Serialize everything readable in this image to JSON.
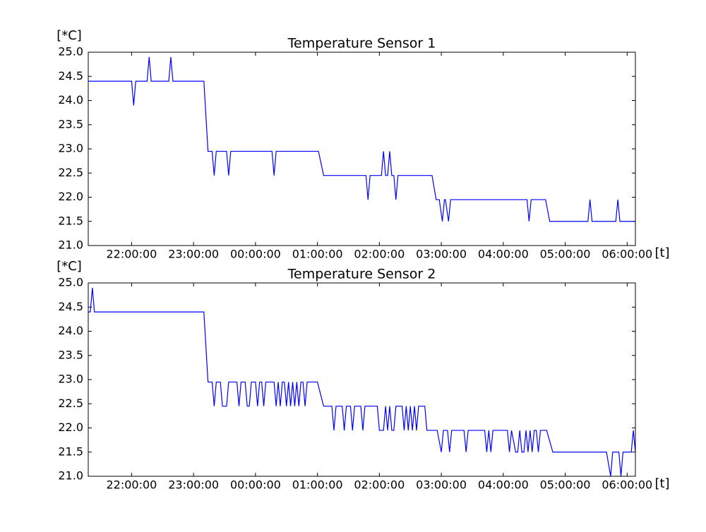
{
  "chart_data": [
    {
      "type": "line",
      "title": "Temperature Sensor 1",
      "ylabel": "[*C]",
      "xlabel": "[t]",
      "color": "#0000ff",
      "xlim": [
        "21:18:00",
        "06:08:00"
      ],
      "xticks": [
        "22:00:00",
        "23:00:00",
        "00:00:00",
        "01:00:00",
        "02:00:00",
        "03:00:00",
        "04:00:00",
        "05:00:00",
        "06:00:00"
      ],
      "ylim": [
        21.0,
        25.0
      ],
      "yticks": [
        {
          "value": 21.0,
          "label": "21.0"
        },
        {
          "value": 21.5,
          "label": "21.5"
        },
        {
          "value": 22.0,
          "label": "22.0"
        },
        {
          "value": 22.5,
          "label": "22.5"
        },
        {
          "value": 23.0,
          "label": "23.0"
        },
        {
          "value": 23.5,
          "label": "23.5"
        },
        {
          "value": 24.0,
          "label": "24.0"
        },
        {
          "value": 24.5,
          "label": "24.5"
        },
        {
          "value": 25.0,
          "label": "25.0"
        }
      ],
      "x": [
        "21:18:00",
        "22:00:00",
        "22:02:00",
        "22:04:00",
        "22:15:00",
        "22:17:00",
        "22:19:00",
        "22:36:00",
        "22:38:00",
        "22:40:00",
        "23:10:00",
        "23:14:00",
        "23:18:00",
        "23:20:00",
        "23:22:00",
        "23:32:00",
        "23:34:00",
        "23:36:00",
        "00:16:00",
        "00:18:00",
        "00:20:00",
        "01:01:00",
        "01:06:00",
        "01:47:00",
        "01:49:00",
        "01:51:00",
        "02:02:00",
        "02:04:00",
        "02:06:00",
        "02:08:00",
        "02:10:00",
        "02:12:00",
        "02:14:00",
        "02:16:00",
        "02:18:00",
        "02:51:00",
        "02:55:00",
        "02:58:00",
        "03:01:00",
        "03:03:00",
        "03:04:00",
        "03:07:00",
        "03:09:00",
        "04:23:00",
        "04:25:00",
        "04:27:00",
        "04:41:00",
        "04:45:00",
        "05:22:00",
        "05:24:00",
        "05:26:00",
        "05:49:00",
        "05:51:00",
        "05:53:00",
        "06:08:00"
      ],
      "values": [
        24.4,
        24.4,
        23.9,
        24.4,
        24.4,
        24.9,
        24.4,
        24.4,
        24.9,
        24.4,
        24.4,
        22.95,
        22.95,
        22.45,
        22.95,
        22.95,
        22.45,
        22.95,
        22.95,
        22.45,
        22.95,
        22.95,
        22.45,
        22.45,
        21.95,
        22.45,
        22.45,
        22.95,
        22.45,
        22.45,
        22.95,
        22.45,
        22.45,
        21.95,
        22.45,
        22.45,
        21.95,
        21.95,
        21.5,
        21.95,
        21.95,
        21.5,
        21.95,
        21.95,
        21.5,
        21.95,
        21.95,
        21.5,
        21.5,
        21.95,
        21.5,
        21.5,
        21.95,
        21.5,
        21.5
      ]
    },
    {
      "type": "line",
      "title": "Temperature Sensor 2",
      "ylabel": "[*C]",
      "xlabel": "[t]",
      "color": "#0000ff",
      "xlim": [
        "21:18:00",
        "06:08:00"
      ],
      "xticks": [
        "22:00:00",
        "23:00:00",
        "00:00:00",
        "01:00:00",
        "02:00:00",
        "03:00:00",
        "04:00:00",
        "05:00:00",
        "06:00:00"
      ],
      "ylim": [
        21.0,
        25.0
      ],
      "yticks": [
        {
          "value": 21.0,
          "label": "21.0"
        },
        {
          "value": 21.5,
          "label": "21.5"
        },
        {
          "value": 22.0,
          "label": "22.0"
        },
        {
          "value": 22.5,
          "label": "22.5"
        },
        {
          "value": 23.0,
          "label": "23.0"
        },
        {
          "value": 23.5,
          "label": "23.5"
        },
        {
          "value": 24.0,
          "label": "24.0"
        },
        {
          "value": 24.5,
          "label": "24.5"
        },
        {
          "value": 25.0,
          "label": "25.0"
        }
      ],
      "x": [
        "21:18:00",
        "21:20:00",
        "21:22:00",
        "21:24:00",
        "23:10:00",
        "23:14:00",
        "23:18:00",
        "23:20:00",
        "23:22:00",
        "23:26:00",
        "23:28:00",
        "23:32:00",
        "23:34:00",
        "23:42:00",
        "23:44:00",
        "23:46:00",
        "23:50:00",
        "23:52:00",
        "23:54:00",
        "23:56:00",
        "00:00:00",
        "00:02:00",
        "00:04:00",
        "00:06:00",
        "00:08:00",
        "00:10:00",
        "00:18:00",
        "00:20:00",
        "00:22:00",
        "00:24:00",
        "00:26:00",
        "00:28:00",
        "00:30:00",
        "00:32:00",
        "00:34:00",
        "00:36:00",
        "00:38:00",
        "00:40:00",
        "00:42:00",
        "00:44:00",
        "00:46:00",
        "00:48:00",
        "00:50:00",
        "01:00:00",
        "01:06:00",
        "01:14:00",
        "01:16:00",
        "01:18:00",
        "01:24:00",
        "01:26:00",
        "01:28:00",
        "01:32:00",
        "01:34:00",
        "01:36:00",
        "01:42:00",
        "01:44:00",
        "01:46:00",
        "01:58:00",
        "02:00:00",
        "02:04:00",
        "02:06:00",
        "02:08:00",
        "02:10:00",
        "02:12:00",
        "02:14:00",
        "02:16:00",
        "02:22:00",
        "02:24:00",
        "02:26:00",
        "02:28:00",
        "02:30:00",
        "02:32:00",
        "02:34:00",
        "02:36:00",
        "02:38:00",
        "02:44:00",
        "02:46:00",
        "02:56:00",
        "03:00:00",
        "03:02:00",
        "03:06:00",
        "03:08:00",
        "03:10:00",
        "03:22:00",
        "03:24:00",
        "03:26:00",
        "03:42:00",
        "03:44:00",
        "03:46:00",
        "03:48:00",
        "03:50:00",
        "04:04:00",
        "04:06:00",
        "04:08:00",
        "04:12:00",
        "04:14:00",
        "04:16:00",
        "04:18:00",
        "04:20:00",
        "04:22:00",
        "04:24:00",
        "04:26:00",
        "04:28:00",
        "04:30:00",
        "04:32:00",
        "04:34:00",
        "04:36:00",
        "04:42:00",
        "04:48:00",
        "05:40:00",
        "05:44:00",
        "05:46:00",
        "05:52:00",
        "05:54:00",
        "05:56:00",
        "06:04:00",
        "06:06:00",
        "06:08:00"
      ],
      "values": [
        24.4,
        24.4,
        24.9,
        24.4,
        24.4,
        22.95,
        22.95,
        22.45,
        22.95,
        22.95,
        22.45,
        22.45,
        22.95,
        22.95,
        22.45,
        22.95,
        22.95,
        22.45,
        22.45,
        22.95,
        22.95,
        22.45,
        22.95,
        22.95,
        22.45,
        22.95,
        22.95,
        22.45,
        22.95,
        22.45,
        22.95,
        22.95,
        22.45,
        22.95,
        22.45,
        22.95,
        22.45,
        22.95,
        22.45,
        22.95,
        22.95,
        22.45,
        22.95,
        22.95,
        22.45,
        22.45,
        21.95,
        22.45,
        22.45,
        21.95,
        22.45,
        22.45,
        21.95,
        22.45,
        22.45,
        21.95,
        22.45,
        22.45,
        21.95,
        21.95,
        22.45,
        21.95,
        22.45,
        21.95,
        21.95,
        22.45,
        22.45,
        21.95,
        22.45,
        21.95,
        22.45,
        21.95,
        22.45,
        21.95,
        22.45,
        22.45,
        21.95,
        21.95,
        21.5,
        21.95,
        21.95,
        21.5,
        21.95,
        21.95,
        21.5,
        21.95,
        21.95,
        21.5,
        21.95,
        21.5,
        21.95,
        21.95,
        21.5,
        21.95,
        21.5,
        21.5,
        21.95,
        21.5,
        21.5,
        21.95,
        21.5,
        21.95,
        21.5,
        21.95,
        21.95,
        21.5,
        21.95,
        21.95,
        21.5,
        21.5,
        21.0,
        21.5,
        21.5,
        21.0,
        21.5,
        21.5,
        21.95,
        21.5
      ]
    }
  ]
}
